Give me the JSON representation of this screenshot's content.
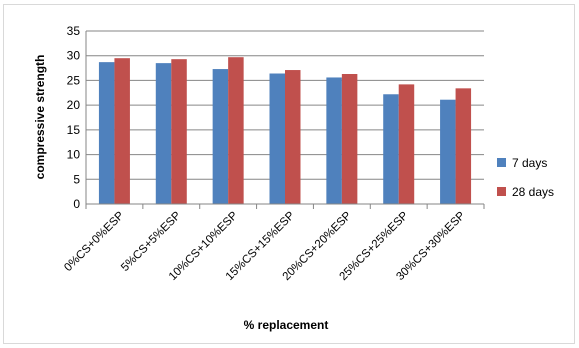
{
  "chart_data": {
    "type": "bar",
    "title": "",
    "xlabel": "% replacement",
    "ylabel": "compressive strength",
    "ylim": [
      0,
      35
    ],
    "ytick_step": 5,
    "grid": true,
    "legend_position": "right",
    "categories": [
      "0%CS+0%ESP",
      "5%CS+5%ESP",
      "10%CS+10%ESP",
      "15%CS+15%ESP",
      "20%CS+20%ESP",
      "25%CS+25%ESP",
      "30%CS+30%ESP"
    ],
    "series": [
      {
        "name": "7 days",
        "color": "#4F81BD",
        "values": [
          28.7,
          28.5,
          27.3,
          26.4,
          25.6,
          22.2,
          21.1
        ]
      },
      {
        "name": "28 days",
        "color": "#C0504D",
        "values": [
          29.5,
          29.3,
          29.7,
          27.1,
          26.3,
          24.2,
          23.4
        ]
      }
    ]
  }
}
